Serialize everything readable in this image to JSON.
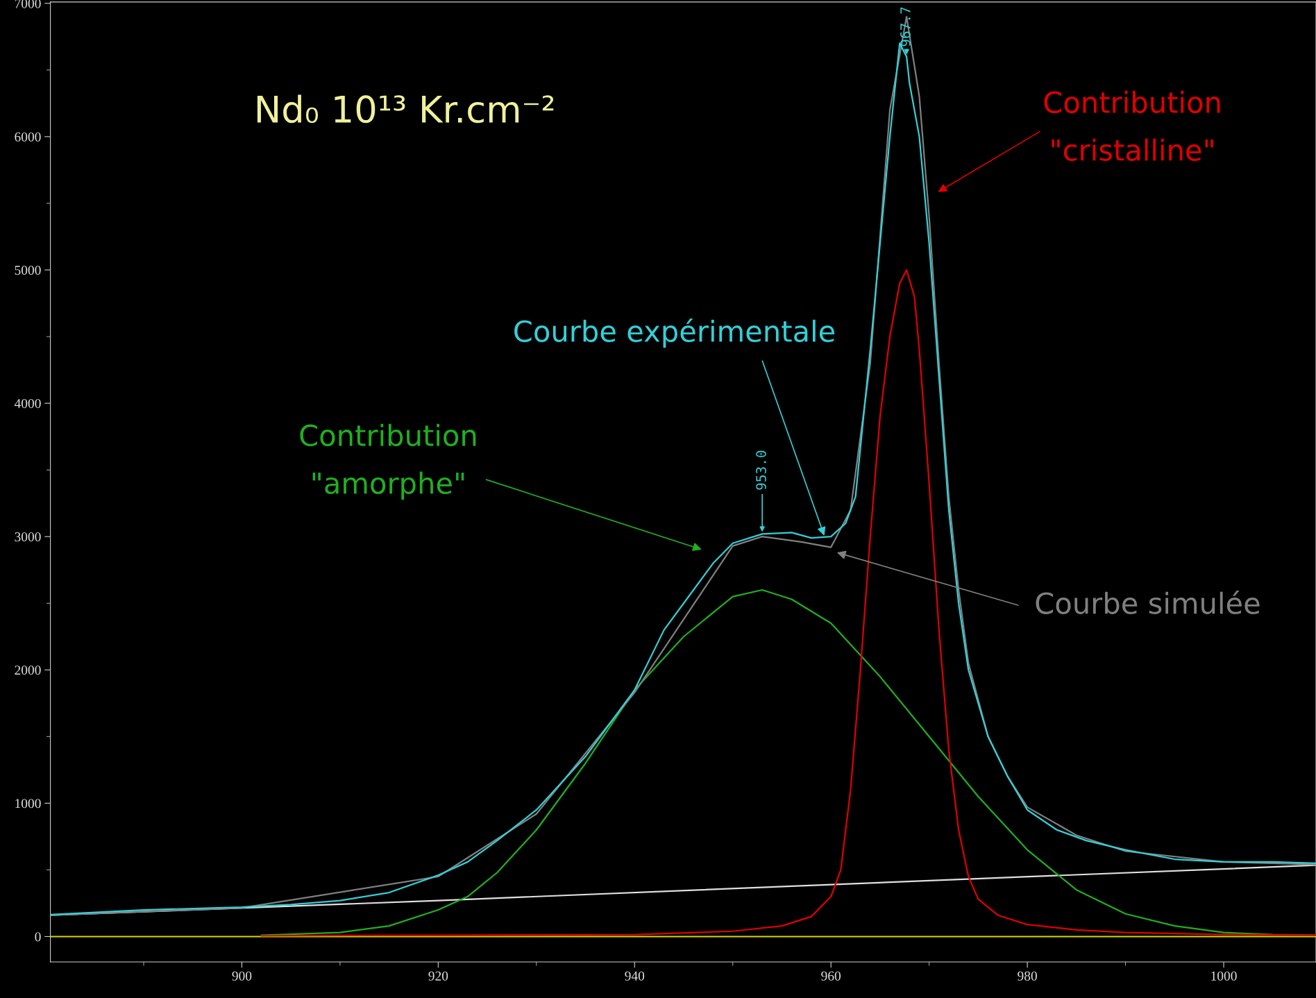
{
  "chart_data": {
    "type": "line",
    "title": "Nd₀ 10¹³ Kr.cm⁻²",
    "xlim": [
      880.5,
      1009.4
    ],
    "ylim": [
      -190,
      7010
    ],
    "xticks": [
      {
        "value": 890,
        "label": null
      },
      900,
      {
        "value": 910,
        "label": null
      },
      920,
      {
        "value": 930,
        "label": null
      },
      940,
      {
        "value": 950,
        "label": null
      },
      960,
      {
        "value": 970,
        "label": null
      },
      980,
      {
        "value": 990,
        "label": null
      },
      1000
    ],
    "yticks": [
      0,
      {
        "value": 500,
        "label": null
      },
      1000,
      {
        "value": 1500,
        "label": null
      },
      2000,
      {
        "value": 2500,
        "label": null
      },
      3000,
      {
        "value": 3500,
        "label": null
      },
      4000,
      {
        "value": 4500,
        "label": null
      },
      5000,
      {
        "value": 5500,
        "label": null
      },
      6000,
      {
        "value": 6500,
        "label": null
      },
      7000
    ],
    "grid": false,
    "legend": false,
    "line_style": "solid",
    "marker": "none",
    "ref_lines": [
      {
        "axis": "y",
        "value": 0,
        "color": "#d8d800"
      }
    ],
    "annotations": [
      {
        "text": "953.0",
        "x": 953,
        "y": 3020
      },
      {
        "text": "967.7",
        "x": 967.7,
        "y": 6600
      }
    ],
    "series": [
      {
        "color": "#e0e0e0",
        "x": [
          880.5,
          920,
          960,
          1009.4
        ],
        "values": [
          160,
          270,
          390,
          535
        ]
      },
      {
        "name": "Contribution\n\"amorphe\"",
        "color": "#20b020",
        "x": [
          902,
          910,
          915,
          920,
          923,
          926,
          930,
          935,
          940,
          945,
          950,
          953,
          956,
          960,
          965,
          970,
          975,
          980,
          985,
          990,
          995,
          1000,
          1005,
          1009.4
        ],
        "values": [
          10,
          30,
          80,
          200,
          300,
          480,
          800,
          1300,
          1850,
          2250,
          2550,
          2600,
          2530,
          2350,
          1950,
          1500,
          1050,
          650,
          350,
          170,
          80,
          30,
          15,
          10
        ]
      },
      {
        "name": "Contribution\n\"cristalline\"",
        "color": "#e00000",
        "x": [
          902,
          920,
          940,
          950,
          955,
          958,
          960,
          961,
          962,
          963,
          964,
          965,
          966,
          967,
          967.7,
          968.5,
          969,
          970,
          971,
          972,
          973,
          974,
          975,
          977,
          980,
          985,
          990,
          1000,
          1009.4
        ],
        "values": [
          5,
          10,
          15,
          40,
          80,
          150,
          300,
          500,
          1100,
          2000,
          3000,
          3900,
          4500,
          4900,
          5000,
          4800,
          4400,
          3400,
          2300,
          1400,
          800,
          450,
          280,
          160,
          90,
          50,
          30,
          15,
          10
        ]
      },
      {
        "name": "Courbe simulée",
        "color": "#808080",
        "x": [
          880.5,
          900,
          920,
          930,
          940,
          950,
          953,
          957,
          960,
          962,
          964,
          966,
          967.7,
          969,
          970,
          971,
          972,
          973,
          974,
          976,
          978,
          980,
          985,
          990,
          1000,
          1009.4
        ],
        "values": [
          160,
          215,
          450,
          920,
          1830,
          2930,
          3000,
          2960,
          2920,
          3200,
          4300,
          6200,
          6900,
          6300,
          5400,
          4300,
          3300,
          2600,
          2050,
          1500,
          1200,
          970,
          760,
          640,
          560,
          540
        ]
      },
      {
        "name": "Courbe expérimentale",
        "color": "#33d0d8",
        "x": [
          880.5,
          890,
          900,
          905,
          910,
          915,
          920,
          923,
          926,
          930,
          935,
          940,
          943,
          946,
          948,
          950,
          953,
          956,
          958,
          960,
          961.5,
          962.5,
          964,
          966,
          967,
          967.7,
          968,
          969,
          970,
          971,
          972,
          973,
          974,
          976,
          978,
          980,
          983,
          986,
          990,
          995,
          1000,
          1005,
          1009.4
        ],
        "values": [
          165,
          200,
          220,
          240,
          270,
          330,
          460,
          560,
          720,
          950,
          1350,
          1850,
          2300,
          2600,
          2800,
          2950,
          3020,
          3030,
          2990,
          3000,
          3100,
          3300,
          4400,
          6000,
          6700,
          6600,
          6400,
          6000,
          5200,
          4200,
          3200,
          2500,
          2000,
          1500,
          1200,
          950,
          800,
          720,
          650,
          580,
          560,
          560,
          550
        ]
      }
    ]
  }
}
